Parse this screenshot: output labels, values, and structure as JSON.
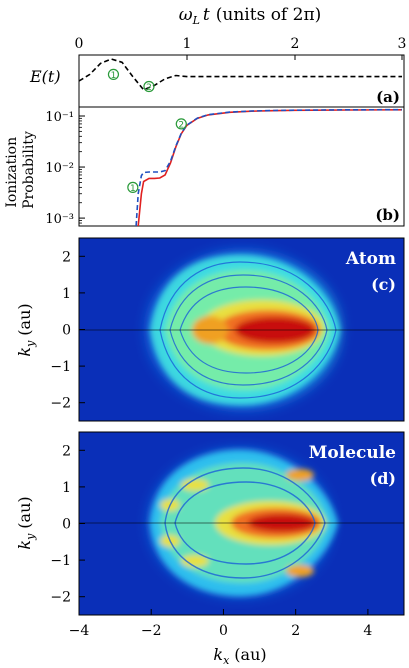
{
  "figure": {
    "top_axis_label": "ωL t (units of 2π)",
    "top_axis_symbol": "ω",
    "top_axis_subscript": "L",
    "top_axis_var": "t",
    "top_axis_units": "(units of 2π)"
  },
  "chart_data": [
    {
      "id": "a",
      "type": "line",
      "panel_label": "(a)",
      "ylabel": "E(t)",
      "xlim": [
        0,
        3
      ],
      "xticks": [
        "0",
        "1",
        "2",
        "3"
      ],
      "series": [
        {
          "style": "dashed",
          "color": "#000000",
          "x": [
            0.0,
            0.1,
            0.2,
            0.3,
            0.4,
            0.5,
            0.6,
            0.7,
            0.8,
            0.9,
            1.0,
            1.5,
            2.0,
            2.5,
            3.0
          ],
          "y": [
            0.0,
            0.3,
            0.8,
            1.0,
            0.85,
            0.2,
            -0.4,
            -0.2,
            0.1,
            0.25,
            0.2,
            0.2,
            0.2,
            0.2,
            0.2
          ]
        }
      ],
      "markers": [
        {
          "text": "1",
          "x": 0.32,
          "y": 0.3
        },
        {
          "text": "2",
          "x": 0.65,
          "y": -0.25
        }
      ]
    },
    {
      "id": "b",
      "type": "line",
      "panel_label": "(b)",
      "ylabel": "Ionization Probability",
      "ylabel_lines": [
        "Ionization",
        "Probability"
      ],
      "yscale": "log",
      "ylim": [
        0.0007,
        0.15
      ],
      "yticks": [
        "10⁻³",
        "10⁻²",
        "10⁻¹"
      ],
      "xlim": [
        0,
        3
      ],
      "series": [
        {
          "style": "solid",
          "color": "#e02020",
          "x": [
            0.55,
            0.58,
            0.6,
            0.65,
            0.7,
            0.75,
            0.8,
            0.85,
            0.9,
            0.95,
            1.0,
            1.1,
            1.2,
            1.4,
            1.6,
            1.8,
            2.0,
            2.5,
            3.0
          ],
          "y": [
            0.0007,
            0.003,
            0.0052,
            0.006,
            0.006,
            0.0061,
            0.007,
            0.012,
            0.025,
            0.045,
            0.065,
            0.09,
            0.105,
            0.118,
            0.124,
            0.127,
            0.129,
            0.131,
            0.132
          ]
        },
        {
          "style": "dashed",
          "color": "#2050c0",
          "x": [
            0.53,
            0.55,
            0.58,
            0.6,
            0.65,
            0.7,
            0.75,
            0.8,
            0.85,
            0.9,
            0.95,
            1.0,
            1.1,
            1.2,
            1.4,
            1.6,
            1.8,
            2.0,
            2.5,
            3.0
          ],
          "y": [
            0.0007,
            0.003,
            0.0068,
            0.0078,
            0.008,
            0.008,
            0.008,
            0.0085,
            0.013,
            0.026,
            0.046,
            0.066,
            0.091,
            0.106,
            0.119,
            0.125,
            0.128,
            0.13,
            0.132,
            0.133
          ]
        }
      ],
      "markers": [
        {
          "text": "1",
          "x": 0.5,
          "y": 0.004
        },
        {
          "text": "2",
          "x": 0.95,
          "y": 0.07
        }
      ]
    },
    {
      "id": "c",
      "type": "heatmap",
      "panel_label": "(c)",
      "title": "Atom",
      "ylabel": "ky (au)",
      "ylabel_var": "k",
      "ylabel_sub": "y",
      "ylabel_units": "(au)",
      "xlim": [
        -4,
        5
      ],
      "ylim": [
        -2.5,
        2.5
      ],
      "yticks": [
        "2",
        "1",
        "0",
        "−1",
        "−2"
      ],
      "ytick_values": [
        2,
        1,
        0,
        -1,
        -2
      ]
    },
    {
      "id": "d",
      "type": "heatmap",
      "panel_label": "(d)",
      "title": "Molecule",
      "ylabel": "ky (au)",
      "ylabel_var": "k",
      "ylabel_sub": "y",
      "ylabel_units": "(au)",
      "xlabel": "kx (au)",
      "xlabel_var": "k",
      "xlabel_sub": "x",
      "xlabel_units": "(au)",
      "xlim": [
        -4,
        5
      ],
      "ylim": [
        -2.5,
        2.5
      ],
      "xticks": [
        "−4",
        "−2",
        "0",
        "2",
        "4"
      ],
      "xtick_values": [
        -4,
        -2,
        0,
        2,
        4
      ],
      "yticks": [
        "2",
        "1",
        "0",
        "−1",
        "−2"
      ],
      "ytick_values": [
        2,
        1,
        0,
        -1,
        -2
      ]
    }
  ]
}
